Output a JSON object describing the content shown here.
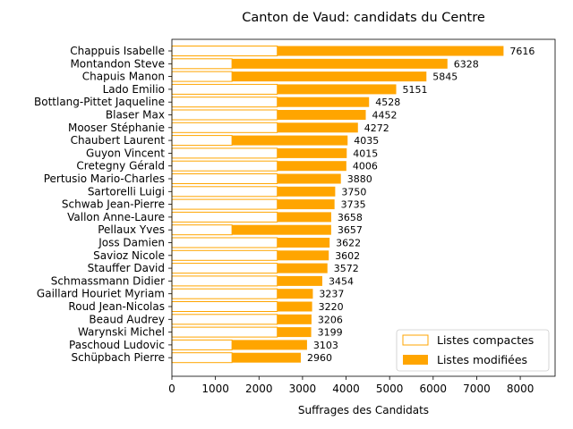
{
  "chart_data": {
    "type": "bar",
    "orientation": "horizontal",
    "title": "Canton de Vaud: candidats du Centre",
    "xlabel": "Suffrages des Candidats",
    "ylabel": "",
    "xlim": [
      0,
      8800
    ],
    "xticks": [
      0,
      1000,
      2000,
      3000,
      4000,
      5000,
      6000,
      7000,
      8000
    ],
    "xtick_labels": [
      "0",
      "1000",
      "2000",
      "3000",
      "4000",
      "5000",
      "6000",
      "7000",
      "8000"
    ],
    "grid": false,
    "legend_position": "bottom-right",
    "colors": {
      "modifiees": "#FFA500",
      "compactes_edge": "#FFA500",
      "compactes_fill": "#ffffff"
    },
    "series": [
      {
        "name": "Listes compactes",
        "style": "outline"
      },
      {
        "name": "Listes modifiées",
        "style": "filled"
      }
    ],
    "categories": [
      "Chappuis Isabelle",
      "Montandon Steve",
      "Chapuis Manon",
      "Lado Emilio",
      "Bottlang-Pittet Jaqueline",
      "Blaser Max",
      "Mooser Stéphanie",
      "Chaubert Laurent",
      "Guyon Vincent",
      "Cretegny Gérald",
      "Pertusio Mario-Charles",
      "Sartorelli Luigi",
      "Schwab Jean-Pierre",
      "Vallon Anne-Laure",
      "Pellaux Yves",
      "Joss Damien",
      "Savioz Nicole",
      "Stauffer David",
      "Schmassmann Didier",
      "Gaillard Houriet Myriam",
      "Roud Jean-Nicolas",
      "Beaud Audrey",
      "Warynski Michel",
      "Paschoud Ludovic",
      "Schüpbach Pierre"
    ],
    "compactes": [
      2420,
      1380,
      1380,
      2420,
      2420,
      2420,
      2420,
      1380,
      2420,
      2420,
      2420,
      2420,
      2420,
      2420,
      1380,
      2420,
      2420,
      2420,
      2420,
      2420,
      2420,
      2420,
      2420,
      1380,
      1380
    ],
    "totals": [
      7616,
      6328,
      5845,
      5151,
      4528,
      4452,
      4272,
      4035,
      4015,
      4006,
      3880,
      3750,
      3735,
      3658,
      3657,
      3622,
      3602,
      3572,
      3454,
      3237,
      3220,
      3206,
      3199,
      3103,
      2960
    ],
    "total_labels": [
      "7616",
      "6328",
      "5845",
      "5151",
      "4528",
      "4452",
      "4272",
      "4035",
      "4015",
      "4006",
      "3880",
      "3750",
      "3735",
      "3658",
      "3657",
      "3622",
      "3602",
      "3572",
      "3454",
      "3237",
      "3220",
      "3206",
      "3199",
      "3103",
      "2960"
    ]
  }
}
